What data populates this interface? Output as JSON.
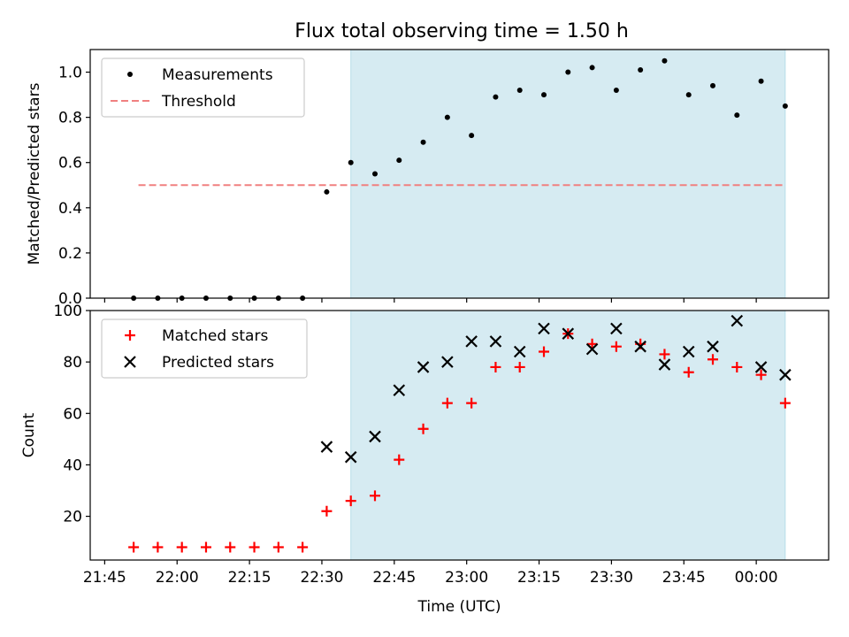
{
  "chart_data": [
    {
      "type": "scatter",
      "title": "Flux total observing time = 1.50 h",
      "xlabel": "",
      "ylabel": "Matched/Predicted stars",
      "xlim": [
        "21:42",
        "00:15"
      ],
      "ylim": [
        0,
        1.1
      ],
      "yticks": [
        "0.0",
        "0.2",
        "0.4",
        "0.6",
        "0.8",
        "1.0"
      ],
      "shaded_region": {
        "start": "22:36",
        "end": "00:06",
        "color": "#add8e6"
      },
      "legend_position": "upper-left",
      "grid": false,
      "threshold": {
        "name": "Threshold",
        "value": 0.5,
        "start": "21:52",
        "end": "00:06",
        "color": "#f08080",
        "style": "dashed"
      },
      "series": [
        {
          "name": "Measurements",
          "marker": "dot",
          "color": "#000000",
          "points": [
            [
              "21:51",
              0.0
            ],
            [
              "21:56",
              0.0
            ],
            [
              "22:01",
              0.0
            ],
            [
              "22:06",
              0.0
            ],
            [
              "22:11",
              0.0
            ],
            [
              "22:16",
              0.0
            ],
            [
              "22:21",
              0.0
            ],
            [
              "22:26",
              0.0
            ],
            [
              "22:31",
              0.47
            ],
            [
              "22:36",
              0.6
            ],
            [
              "22:41",
              0.55
            ],
            [
              "22:46",
              0.61
            ],
            [
              "22:51",
              0.69
            ],
            [
              "22:56",
              0.8
            ],
            [
              "23:01",
              0.72
            ],
            [
              "23:06",
              0.89
            ],
            [
              "23:11",
              0.92
            ],
            [
              "23:16",
              0.9
            ],
            [
              "23:21",
              1.0
            ],
            [
              "23:26",
              1.02
            ],
            [
              "23:31",
              0.92
            ],
            [
              "23:36",
              1.01
            ],
            [
              "23:41",
              1.05
            ],
            [
              "23:46",
              0.9
            ],
            [
              "23:51",
              0.94
            ],
            [
              "23:56",
              0.81
            ],
            [
              "00:01",
              0.96
            ],
            [
              "00:06",
              0.85
            ]
          ]
        }
      ]
    },
    {
      "type": "scatter",
      "title": "",
      "xlabel": "Time (UTC)",
      "ylabel": "Count",
      "xlim": [
        "21:42",
        "00:15"
      ],
      "ylim": [
        3,
        100
      ],
      "yticks": [
        "20",
        "40",
        "60",
        "80",
        "100"
      ],
      "xticks": [
        "21:45",
        "22:00",
        "22:15",
        "22:30",
        "22:45",
        "23:00",
        "23:15",
        "23:30",
        "23:45",
        "00:00"
      ],
      "shaded_region": {
        "start": "22:36",
        "end": "00:06",
        "color": "#add8e6"
      },
      "legend_position": "upper-left",
      "grid": false,
      "series": [
        {
          "name": "Matched stars",
          "marker": "plus",
          "color": "#ff0000",
          "points": [
            [
              "21:51",
              8
            ],
            [
              "21:56",
              8
            ],
            [
              "22:01",
              8
            ],
            [
              "22:06",
              8
            ],
            [
              "22:11",
              8
            ],
            [
              "22:16",
              8
            ],
            [
              "22:21",
              8
            ],
            [
              "22:26",
              8
            ],
            [
              "22:31",
              22
            ],
            [
              "22:36",
              26
            ],
            [
              "22:41",
              28
            ],
            [
              "22:46",
              42
            ],
            [
              "22:51",
              54
            ],
            [
              "22:56",
              64
            ],
            [
              "23:01",
              64
            ],
            [
              "23:06",
              78
            ],
            [
              "23:11",
              78
            ],
            [
              "23:16",
              84
            ],
            [
              "23:21",
              91
            ],
            [
              "23:26",
              87
            ],
            [
              "23:31",
              86
            ],
            [
              "23:36",
              87
            ],
            [
              "23:41",
              83
            ],
            [
              "23:46",
              76
            ],
            [
              "23:51",
              81
            ],
            [
              "23:56",
              78
            ],
            [
              "00:01",
              75
            ],
            [
              "00:06",
              64
            ]
          ]
        },
        {
          "name": "Predicted stars",
          "marker": "x",
          "color": "#000000",
          "points": [
            [
              "22:31",
              47
            ],
            [
              "22:36",
              43
            ],
            [
              "22:41",
              51
            ],
            [
              "22:46",
              69
            ],
            [
              "22:51",
              78
            ],
            [
              "22:56",
              80
            ],
            [
              "23:01",
              88
            ],
            [
              "23:06",
              88
            ],
            [
              "23:11",
              84
            ],
            [
              "23:16",
              93
            ],
            [
              "23:21",
              91
            ],
            [
              "23:26",
              85
            ],
            [
              "23:31",
              93
            ],
            [
              "23:36",
              86
            ],
            [
              "23:41",
              79
            ],
            [
              "23:46",
              84
            ],
            [
              "23:51",
              86
            ],
            [
              "23:56",
              96
            ],
            [
              "00:01",
              78
            ],
            [
              "00:06",
              75
            ]
          ]
        }
      ]
    }
  ]
}
